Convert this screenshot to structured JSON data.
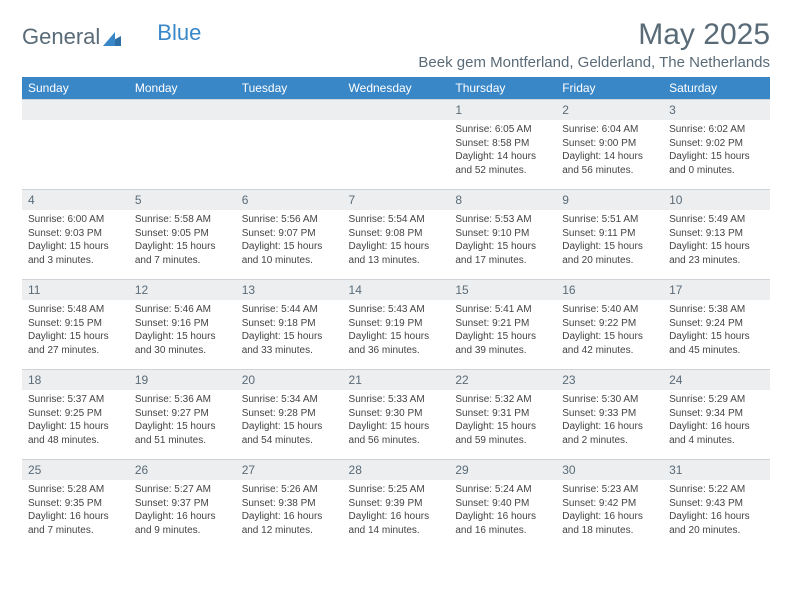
{
  "brand": {
    "part1": "General",
    "part2": "Blue"
  },
  "title": "May 2025",
  "location": "Beek gem Montferland, Gelderland, The Netherlands",
  "colors": {
    "header_bg": "#3a87c8",
    "header_text": "#ffffff",
    "daynum_bg": "#eceeef",
    "text_muted": "#5a6b78",
    "border": "#d0d4d8"
  },
  "weekdays": [
    "Sunday",
    "Monday",
    "Tuesday",
    "Wednesday",
    "Thursday",
    "Friday",
    "Saturday"
  ],
  "weeks": [
    [
      {
        "empty": true
      },
      {
        "empty": true
      },
      {
        "empty": true
      },
      {
        "empty": true
      },
      {
        "day": "1",
        "sunrise": "Sunrise: 6:05 AM",
        "sunset": "Sunset: 8:58 PM",
        "daylight": "Daylight: 14 hours and 52 minutes."
      },
      {
        "day": "2",
        "sunrise": "Sunrise: 6:04 AM",
        "sunset": "Sunset: 9:00 PM",
        "daylight": "Daylight: 14 hours and 56 minutes."
      },
      {
        "day": "3",
        "sunrise": "Sunrise: 6:02 AM",
        "sunset": "Sunset: 9:02 PM",
        "daylight": "Daylight: 15 hours and 0 minutes."
      }
    ],
    [
      {
        "day": "4",
        "sunrise": "Sunrise: 6:00 AM",
        "sunset": "Sunset: 9:03 PM",
        "daylight": "Daylight: 15 hours and 3 minutes."
      },
      {
        "day": "5",
        "sunrise": "Sunrise: 5:58 AM",
        "sunset": "Sunset: 9:05 PM",
        "daylight": "Daylight: 15 hours and 7 minutes."
      },
      {
        "day": "6",
        "sunrise": "Sunrise: 5:56 AM",
        "sunset": "Sunset: 9:07 PM",
        "daylight": "Daylight: 15 hours and 10 minutes."
      },
      {
        "day": "7",
        "sunrise": "Sunrise: 5:54 AM",
        "sunset": "Sunset: 9:08 PM",
        "daylight": "Daylight: 15 hours and 13 minutes."
      },
      {
        "day": "8",
        "sunrise": "Sunrise: 5:53 AM",
        "sunset": "Sunset: 9:10 PM",
        "daylight": "Daylight: 15 hours and 17 minutes."
      },
      {
        "day": "9",
        "sunrise": "Sunrise: 5:51 AM",
        "sunset": "Sunset: 9:11 PM",
        "daylight": "Daylight: 15 hours and 20 minutes."
      },
      {
        "day": "10",
        "sunrise": "Sunrise: 5:49 AM",
        "sunset": "Sunset: 9:13 PM",
        "daylight": "Daylight: 15 hours and 23 minutes."
      }
    ],
    [
      {
        "day": "11",
        "sunrise": "Sunrise: 5:48 AM",
        "sunset": "Sunset: 9:15 PM",
        "daylight": "Daylight: 15 hours and 27 minutes."
      },
      {
        "day": "12",
        "sunrise": "Sunrise: 5:46 AM",
        "sunset": "Sunset: 9:16 PM",
        "daylight": "Daylight: 15 hours and 30 minutes."
      },
      {
        "day": "13",
        "sunrise": "Sunrise: 5:44 AM",
        "sunset": "Sunset: 9:18 PM",
        "daylight": "Daylight: 15 hours and 33 minutes."
      },
      {
        "day": "14",
        "sunrise": "Sunrise: 5:43 AM",
        "sunset": "Sunset: 9:19 PM",
        "daylight": "Daylight: 15 hours and 36 minutes."
      },
      {
        "day": "15",
        "sunrise": "Sunrise: 5:41 AM",
        "sunset": "Sunset: 9:21 PM",
        "daylight": "Daylight: 15 hours and 39 minutes."
      },
      {
        "day": "16",
        "sunrise": "Sunrise: 5:40 AM",
        "sunset": "Sunset: 9:22 PM",
        "daylight": "Daylight: 15 hours and 42 minutes."
      },
      {
        "day": "17",
        "sunrise": "Sunrise: 5:38 AM",
        "sunset": "Sunset: 9:24 PM",
        "daylight": "Daylight: 15 hours and 45 minutes."
      }
    ],
    [
      {
        "day": "18",
        "sunrise": "Sunrise: 5:37 AM",
        "sunset": "Sunset: 9:25 PM",
        "daylight": "Daylight: 15 hours and 48 minutes."
      },
      {
        "day": "19",
        "sunrise": "Sunrise: 5:36 AM",
        "sunset": "Sunset: 9:27 PM",
        "daylight": "Daylight: 15 hours and 51 minutes."
      },
      {
        "day": "20",
        "sunrise": "Sunrise: 5:34 AM",
        "sunset": "Sunset: 9:28 PM",
        "daylight": "Daylight: 15 hours and 54 minutes."
      },
      {
        "day": "21",
        "sunrise": "Sunrise: 5:33 AM",
        "sunset": "Sunset: 9:30 PM",
        "daylight": "Daylight: 15 hours and 56 minutes."
      },
      {
        "day": "22",
        "sunrise": "Sunrise: 5:32 AM",
        "sunset": "Sunset: 9:31 PM",
        "daylight": "Daylight: 15 hours and 59 minutes."
      },
      {
        "day": "23",
        "sunrise": "Sunrise: 5:30 AM",
        "sunset": "Sunset: 9:33 PM",
        "daylight": "Daylight: 16 hours and 2 minutes."
      },
      {
        "day": "24",
        "sunrise": "Sunrise: 5:29 AM",
        "sunset": "Sunset: 9:34 PM",
        "daylight": "Daylight: 16 hours and 4 minutes."
      }
    ],
    [
      {
        "day": "25",
        "sunrise": "Sunrise: 5:28 AM",
        "sunset": "Sunset: 9:35 PM",
        "daylight": "Daylight: 16 hours and 7 minutes."
      },
      {
        "day": "26",
        "sunrise": "Sunrise: 5:27 AM",
        "sunset": "Sunset: 9:37 PM",
        "daylight": "Daylight: 16 hours and 9 minutes."
      },
      {
        "day": "27",
        "sunrise": "Sunrise: 5:26 AM",
        "sunset": "Sunset: 9:38 PM",
        "daylight": "Daylight: 16 hours and 12 minutes."
      },
      {
        "day": "28",
        "sunrise": "Sunrise: 5:25 AM",
        "sunset": "Sunset: 9:39 PM",
        "daylight": "Daylight: 16 hours and 14 minutes."
      },
      {
        "day": "29",
        "sunrise": "Sunrise: 5:24 AM",
        "sunset": "Sunset: 9:40 PM",
        "daylight": "Daylight: 16 hours and 16 minutes."
      },
      {
        "day": "30",
        "sunrise": "Sunrise: 5:23 AM",
        "sunset": "Sunset: 9:42 PM",
        "daylight": "Daylight: 16 hours and 18 minutes."
      },
      {
        "day": "31",
        "sunrise": "Sunrise: 5:22 AM",
        "sunset": "Sunset: 9:43 PM",
        "daylight": "Daylight: 16 hours and 20 minutes."
      }
    ]
  ]
}
